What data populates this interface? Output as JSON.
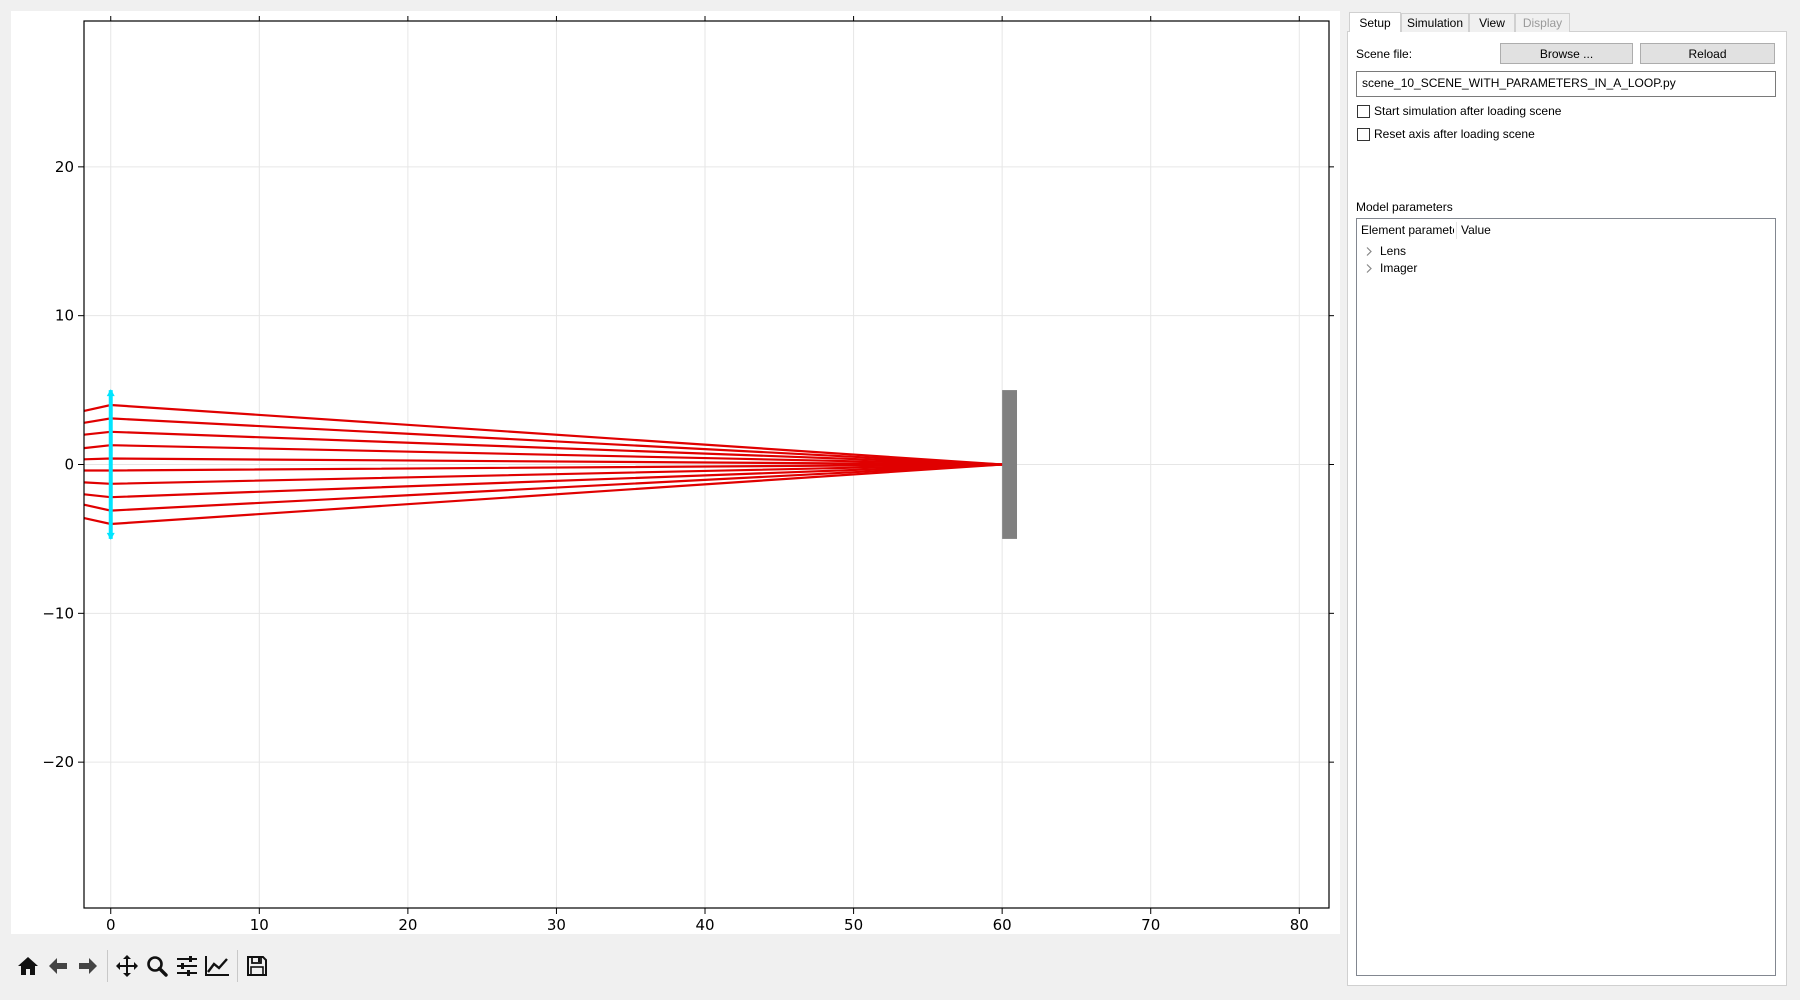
{
  "chart_data": {
    "type": "scatter",
    "title": "",
    "xlabel": "",
    "ylabel": "",
    "xlim": [
      -1.8,
      82
    ],
    "ylim": [
      -29.8,
      29.8
    ],
    "grid": true,
    "x_ticks": [
      0,
      10,
      20,
      30,
      40,
      50,
      60,
      70,
      80
    ],
    "x_tick_labels": [
      "0",
      "10",
      "20",
      "30",
      "40",
      "50",
      "60",
      "70",
      "80"
    ],
    "y_ticks": [
      20,
      10,
      0,
      -10,
      -20
    ],
    "y_tick_labels": [
      "20",
      "10",
      "0",
      "−10",
      "−20"
    ],
    "rays": {
      "color": "#e00000",
      "start_x": -1.8,
      "lens_x": 0,
      "focus": [
        60,
        0
      ],
      "heights_at_lens": [
        4,
        3.1,
        2.2,
        1.3,
        0.4,
        -0.4,
        -1.3,
        -2.2,
        -3.1,
        -4
      ],
      "heights_at_start": [
        3.6,
        2.8,
        2.0,
        1.1,
        0.35,
        -0.4,
        -1.2,
        -2.0,
        -2.7,
        -3.6
      ]
    },
    "lens": {
      "color": "#00e5ff",
      "x": 0,
      "y_range": [
        -5,
        5
      ]
    },
    "imager": {
      "color": "#808080",
      "x_range": [
        60,
        61
      ],
      "y_range": [
        -5,
        5
      ]
    }
  },
  "toolbar": {
    "home_icon": "home-icon",
    "back_icon": "arrow-left-icon",
    "forward_icon": "arrow-right-icon",
    "pan_icon": "move-icon",
    "zoom_icon": "magnifier-icon",
    "configure_icon": "sliders-icon",
    "edit_icon": "line-chart-icon",
    "save_icon": "floppy-disk-icon"
  },
  "side": {
    "tabs": [
      "Setup",
      "Simulation",
      "View",
      "Display"
    ],
    "scene_label": "Scene file:",
    "browse_label": "Browse ...",
    "reload_label": "Reload",
    "scene_value": "scene_10_SCENE_WITH_PARAMETERS_IN_A_LOOP.py",
    "start_sim_label": "Start simulation after loading scene",
    "reset_axis_label": "Reset axis after loading scene",
    "model_params_label": "Model parameters",
    "col_element": "Element paramete",
    "col_value": "Value",
    "tree_items": [
      "Lens",
      "Imager"
    ]
  }
}
